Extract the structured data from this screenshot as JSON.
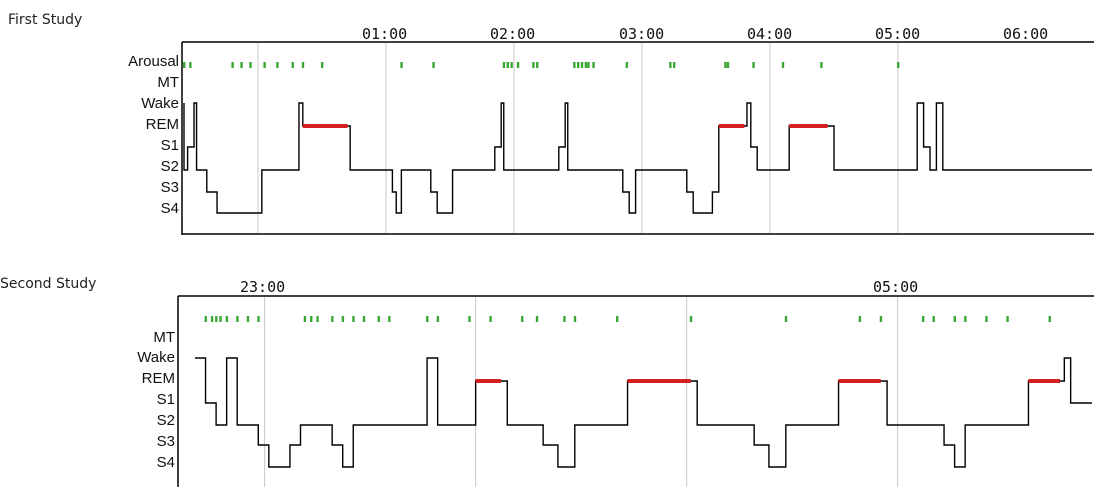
{
  "chart_data": [
    {
      "type": "line",
      "title": "First Study",
      "stage_labels": [
        "Arousal",
        "MT",
        "Wake",
        "REM",
        "S1",
        "S2",
        "S3",
        "S4"
      ],
      "time_labels": [
        "01:00",
        "02:00",
        "03:00",
        "04:00",
        "05:00",
        "06:00"
      ],
      "colors": {
        "hypnogram": "#000000",
        "rem": "#d42020",
        "arousal": "#3aa832",
        "grid": "#c8c8c8"
      },
      "rem_periods": [
        [
          1.35,
          1.7
        ],
        [
          4.6,
          4.8
        ],
        [
          5.15,
          5.45
        ]
      ],
      "arousal_times": [
        0.35,
        0.4,
        0.47,
        0.8,
        0.87,
        0.94,
        1.05,
        1.15,
        1.27,
        1.35,
        1.5,
        2.12,
        2.37,
        2.92,
        2.95,
        2.98,
        3.03,
        3.15,
        3.18,
        3.47,
        3.5,
        3.53,
        3.56,
        3.58,
        3.62,
        3.88,
        4.22,
        4.25,
        4.65,
        4.67,
        4.87,
        5.1,
        5.4,
        6.0
      ],
      "hypnogram": [
        [
          0,
          "Wake"
        ],
        [
          0.1,
          "S1"
        ],
        [
          0.15,
          "S2"
        ],
        [
          0.2,
          "S1"
        ],
        [
          0.22,
          "Wake"
        ],
        [
          0.23,
          "S1"
        ],
        [
          0.26,
          "Wake"
        ],
        [
          0.27,
          "S1"
        ],
        [
          0.3,
          "Wake"
        ],
        [
          0.31,
          "S1"
        ],
        [
          0.34,
          "Wake"
        ],
        [
          0.35,
          "S1"
        ],
        [
          0.4,
          "S2"
        ],
        [
          0.45,
          "S1"
        ],
        [
          0.5,
          "Wake"
        ],
        [
          0.52,
          "S2"
        ],
        [
          0.58,
          "S2"
        ],
        [
          0.6,
          "S3"
        ],
        [
          0.68,
          "S4"
        ],
        [
          1.0,
          "S4"
        ],
        [
          1.03,
          "S2"
        ],
        [
          1.3,
          "S2"
        ],
        [
          1.32,
          "Wake"
        ],
        [
          1.35,
          "REM"
        ],
        [
          1.7,
          "REM"
        ],
        [
          1.72,
          "S2"
        ],
        [
          2.0,
          "S2"
        ],
        [
          2.05,
          "S3"
        ],
        [
          2.08,
          "S4"
        ],
        [
          2.12,
          "S2"
        ],
        [
          2.3,
          "S2"
        ],
        [
          2.35,
          "S3"
        ],
        [
          2.4,
          "S4"
        ],
        [
          2.5,
          "S4"
        ],
        [
          2.52,
          "S2"
        ],
        [
          2.8,
          "S2"
        ],
        [
          2.85,
          "S1"
        ],
        [
          2.9,
          "Wake"
        ],
        [
          2.92,
          "S2"
        ],
        [
          3.3,
          "S2"
        ],
        [
          3.35,
          "S1"
        ],
        [
          3.4,
          "Wake"
        ],
        [
          3.42,
          "S2"
        ],
        [
          3.8,
          "S2"
        ],
        [
          3.85,
          "S3"
        ],
        [
          3.9,
          "S4"
        ],
        [
          3.95,
          "S2"
        ],
        [
          4.3,
          "S2"
        ],
        [
          4.35,
          "S3"
        ],
        [
          4.4,
          "S4"
        ],
        [
          4.5,
          "S4"
        ],
        [
          4.55,
          "S3"
        ],
        [
          4.6,
          "REM"
        ],
        [
          4.8,
          "REM"
        ],
        [
          4.82,
          "Wake"
        ],
        [
          4.85,
          "S1"
        ],
        [
          4.9,
          "S2"
        ],
        [
          5.1,
          "S2"
        ],
        [
          5.15,
          "REM"
        ],
        [
          5.45,
          "REM"
        ],
        [
          5.5,
          "S2"
        ],
        [
          6.1,
          "S2"
        ],
        [
          6.15,
          "Wake"
        ],
        [
          6.2,
          "S1"
        ],
        [
          6.25,
          "S2"
        ],
        [
          6.3,
          "Wake"
        ],
        [
          6.35,
          "S2"
        ]
      ]
    },
    {
      "type": "line",
      "title": "Second Study",
      "stage_labels": [
        "MT",
        "Wake",
        "REM",
        "S1",
        "S2",
        "S3",
        "S4"
      ],
      "time_labels": [
        "23:00",
        "05:00"
      ],
      "colors": {
        "hypnogram": "#000000",
        "rem": "#d42020",
        "mt": "#3aa832",
        "grid": "#c8c8c8"
      },
      "rem_periods": [
        [
          1.33,
          1.45
        ],
        [
          2.05,
          2.35
        ],
        [
          3.05,
          3.25
        ],
        [
          3.95,
          4.1
        ]
      ],
      "mt_times": [
        0.05,
        0.08,
        0.1,
        0.12,
        0.15,
        0.2,
        0.25,
        0.3,
        0.52,
        0.55,
        0.58,
        0.65,
        0.7,
        0.75,
        0.8,
        0.87,
        0.92,
        1.1,
        1.15,
        1.3,
        1.4,
        1.55,
        1.62,
        1.75,
        1.8,
        2.0,
        2.35,
        2.8,
        3.15,
        3.25,
        3.45,
        3.5,
        3.6,
        3.65,
        3.75,
        3.85,
        4.05
      ],
      "hypnogram": [
        [
          0,
          "Wake"
        ],
        [
          0.05,
          "S1"
        ],
        [
          0.1,
          "S2"
        ],
        [
          0.15,
          "Wake"
        ],
        [
          0.2,
          "S2"
        ],
        [
          0.25,
          "S2"
        ],
        [
          0.3,
          "S3"
        ],
        [
          0.35,
          "S4"
        ],
        [
          0.45,
          "S3"
        ],
        [
          0.5,
          "S2"
        ],
        [
          0.6,
          "S2"
        ],
        [
          0.65,
          "S3"
        ],
        [
          0.7,
          "S4"
        ],
        [
          0.75,
          "S2"
        ],
        [
          1.0,
          "S2"
        ],
        [
          1.1,
          "Wake"
        ],
        [
          1.15,
          "S2"
        ],
        [
          1.3,
          "S2"
        ],
        [
          1.33,
          "REM"
        ],
        [
          1.45,
          "REM"
        ],
        [
          1.48,
          "S2"
        ],
        [
          1.6,
          "S2"
        ],
        [
          1.65,
          "S3"
        ],
        [
          1.72,
          "S4"
        ],
        [
          1.8,
          "S2"
        ],
        [
          2.0,
          "S2"
        ],
        [
          2.05,
          "REM"
        ],
        [
          2.35,
          "REM"
        ],
        [
          2.38,
          "S2"
        ],
        [
          2.6,
          "S2"
        ],
        [
          2.65,
          "S3"
        ],
        [
          2.72,
          "S4"
        ],
        [
          2.8,
          "S2"
        ],
        [
          3.0,
          "S2"
        ],
        [
          3.05,
          "REM"
        ],
        [
          3.25,
          "REM"
        ],
        [
          3.28,
          "S2"
        ],
        [
          3.5,
          "S2"
        ],
        [
          3.55,
          "S3"
        ],
        [
          3.6,
          "S4"
        ],
        [
          3.65,
          "S2"
        ],
        [
          3.9,
          "S2"
        ],
        [
          3.95,
          "REM"
        ],
        [
          4.1,
          "REM"
        ],
        [
          4.12,
          "Wake"
        ],
        [
          4.15,
          "S1"
        ]
      ]
    }
  ]
}
